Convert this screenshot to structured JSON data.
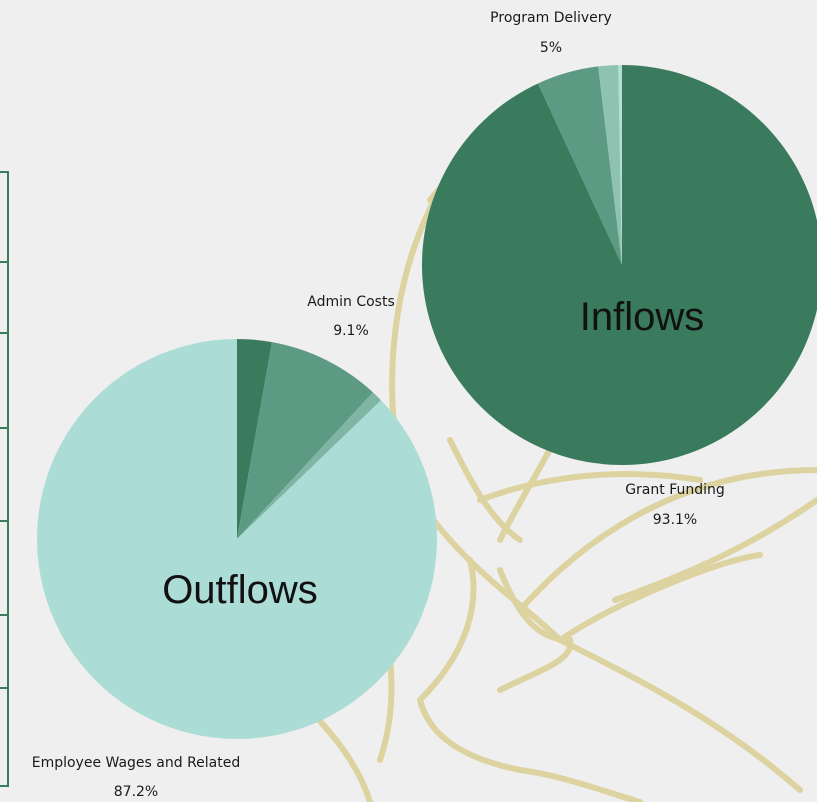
{
  "colors": {
    "background": "#efefef",
    "decoration": "#ddd3a0",
    "frame": "#3b7b5d"
  },
  "chart_data": [
    {
      "type": "pie",
      "title": "Inflows",
      "slices": [
        {
          "name": "Grant Funding",
          "value": 93.1,
          "label": "93.1%",
          "color": "#3b7b5d"
        },
        {
          "name": "Program Delivery",
          "value": 5,
          "label": "5%",
          "color": "#5c9a84"
        },
        {
          "name": "",
          "value": 1.6,
          "label": "",
          "color": "#8ec2b2"
        },
        {
          "name": "",
          "value": 0.3,
          "label": "",
          "color": "#b5ddd3"
        }
      ]
    },
    {
      "type": "pie",
      "title": "Outflows",
      "slices": [
        {
          "name": "",
          "value": 2.8,
          "label": "",
          "color": "#3b7b5d"
        },
        {
          "name": "Admin Costs",
          "value": 9.1,
          "label": "9.1%",
          "color": "#5c9a84"
        },
        {
          "name": "",
          "value": 0.9,
          "label": "",
          "color": "#7eb5a5"
        },
        {
          "name": "Employee Wages and Related",
          "value": 87.2,
          "label": "87.2%",
          "color": "#acdcd6"
        }
      ]
    }
  ]
}
